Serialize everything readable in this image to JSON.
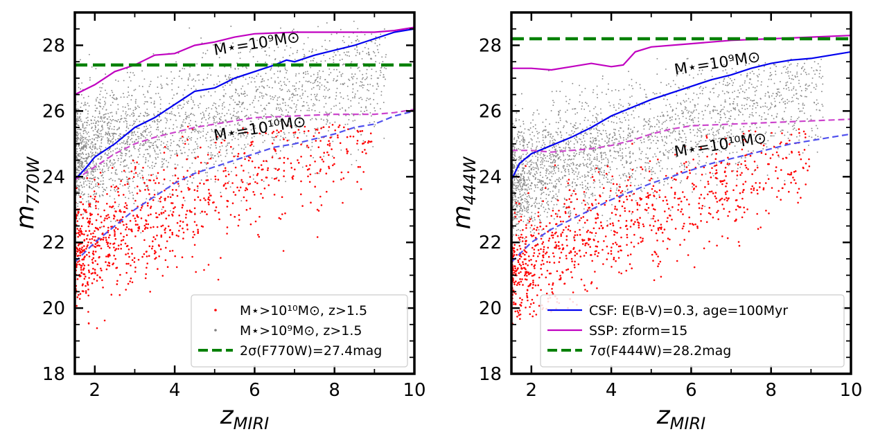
{
  "chart_data": [
    {
      "type": "scatter",
      "xlabel_main": "z",
      "xlabel_sub": "MIRI",
      "ylabel_main": "m",
      "ylabel_sub": "770W",
      "xlim": [
        1.5,
        10
      ],
      "ylim": [
        18,
        29
      ],
      "xticks": [
        "2",
        "4",
        "6",
        "8",
        "10"
      ],
      "yticks": [
        "18",
        "20",
        "22",
        "24",
        "26",
        "28"
      ],
      "threshold": 27.4,
      "annotations": [
        {
          "text": "M⋆=10⁹M⊙",
          "x": 5.0,
          "y": 27.7
        },
        {
          "text": "M⋆=10¹⁰M⊙",
          "x": 5.0,
          "y": 25.1
        }
      ],
      "legend": {
        "position": "lower right",
        "entries": [
          {
            "label": "M⋆>10¹⁰M⊙, z>1.5",
            "color": "#ff0000",
            "marker": "dot"
          },
          {
            "label": "M⋆>10⁹M⊙, z>1.5",
            "color": "#808080",
            "marker": "dot"
          },
          {
            "label": "2σ(F770W)=27.4mag",
            "color": "#008000",
            "marker": "dash"
          }
        ]
      },
      "series": [
        {
          "style": "solid",
          "color": "#0000ee",
          "x": [
            1.5,
            1.8,
            2.0,
            2.5,
            3.0,
            3.5,
            4.0,
            4.5,
            5.0,
            5.5,
            6.0,
            6.5,
            6.8,
            7.0,
            7.5,
            8.0,
            8.5,
            9.0,
            9.5,
            10.0
          ],
          "y": [
            23.9,
            24.3,
            24.6,
            25.0,
            25.5,
            25.8,
            26.2,
            26.6,
            26.7,
            27.0,
            27.2,
            27.4,
            27.55,
            27.5,
            27.7,
            27.85,
            28.0,
            28.2,
            28.4,
            28.5
          ]
        },
        {
          "style": "solid",
          "color": "#c000c0",
          "x": [
            1.5,
            2.0,
            2.5,
            3.0,
            3.5,
            4.0,
            4.5,
            5.0,
            5.5,
            6.0,
            7.0,
            8.0,
            9.0,
            9.5,
            10.0
          ],
          "y": [
            26.5,
            26.8,
            27.2,
            27.4,
            27.7,
            27.75,
            28.0,
            28.1,
            28.25,
            28.35,
            28.4,
            28.4,
            28.4,
            28.45,
            28.55
          ]
        },
        {
          "style": "dashed",
          "color": "#5050ee",
          "x": [
            1.5,
            2.0,
            2.5,
            3.0,
            3.5,
            4.0,
            4.5,
            5.0,
            5.5,
            6.0,
            6.5,
            7.0,
            7.5,
            8.0,
            8.5,
            9.0,
            9.5,
            10.0
          ],
          "y": [
            21.4,
            22.0,
            22.5,
            23.0,
            23.4,
            23.8,
            24.1,
            24.3,
            24.5,
            24.7,
            24.9,
            25.0,
            25.15,
            25.3,
            25.5,
            25.6,
            25.85,
            26.0
          ]
        },
        {
          "style": "dashed",
          "color": "#cc44cc",
          "x": [
            1.5,
            2.0,
            2.5,
            3.0,
            3.5,
            4.0,
            4.5,
            5.0,
            5.5,
            6.0,
            7.0,
            8.0,
            9.0,
            9.5,
            10.0
          ],
          "y": [
            23.9,
            24.3,
            24.7,
            25.0,
            25.2,
            25.35,
            25.5,
            25.6,
            25.7,
            25.8,
            25.85,
            25.9,
            25.9,
            25.95,
            26.05
          ]
        }
      ],
      "clouds": {
        "gray": {
          "count": 2600,
          "zmin": 1.5,
          "zmax": 9.3,
          "center": [
            24.6,
            0.33
          ],
          "spread": 0.95,
          "min": 22.0,
          "max": 28.8
        },
        "red": {
          "count": 1000,
          "zmin": 1.5,
          "zmax": 9.0,
          "center": [
            21.6,
            0.55
          ],
          "spread": 0.9,
          "min": 19.0,
          "max": 25.6
        }
      }
    },
    {
      "type": "scatter",
      "xlabel_main": "z",
      "xlabel_sub": "MIRI",
      "ylabel_main": "m",
      "ylabel_sub": "444W",
      "xlim": [
        1.5,
        10
      ],
      "ylim": [
        18,
        29
      ],
      "xticks": [
        "2",
        "4",
        "6",
        "8",
        "10"
      ],
      "yticks": [
        "18",
        "20",
        "22",
        "24",
        "26",
        "28"
      ],
      "threshold": 28.2,
      "annotations": [
        {
          "text": "M⋆=10⁹M⊙",
          "x": 5.6,
          "y": 27.1
        },
        {
          "text": "M⋆=10¹⁰M⊙",
          "x": 5.6,
          "y": 24.6
        }
      ],
      "legend": {
        "position": "lower right",
        "entries": [
          {
            "label": "CSF: E(B-V)=0.3, age=100Myr",
            "color": "#0000ee",
            "marker": "line"
          },
          {
            "label": "SSP: zform=15",
            "color": "#c000c0",
            "marker": "line"
          },
          {
            "label": "7σ(F444W)=28.2mag",
            "color": "#008000",
            "marker": "dash"
          }
        ]
      },
      "series": [
        {
          "style": "solid",
          "color": "#0000ee",
          "x": [
            1.5,
            1.7,
            2.0,
            2.5,
            3.0,
            3.5,
            4.0,
            4.5,
            5.0,
            5.5,
            6.0,
            6.5,
            7.0,
            7.5,
            8.0,
            8.5,
            9.0,
            9.5,
            10.0
          ],
          "y": [
            23.9,
            24.4,
            24.7,
            24.95,
            25.2,
            25.5,
            25.85,
            26.1,
            26.35,
            26.55,
            26.75,
            26.95,
            27.1,
            27.3,
            27.45,
            27.55,
            27.6,
            27.7,
            27.8
          ]
        },
        {
          "style": "solid",
          "color": "#c000c0",
          "x": [
            1.5,
            2.0,
            2.5,
            3.0,
            3.5,
            4.0,
            4.3,
            4.6,
            5.0,
            6.0,
            7.0,
            8.0,
            9.0,
            10.0
          ],
          "y": [
            27.3,
            27.3,
            27.25,
            27.35,
            27.45,
            27.35,
            27.4,
            27.8,
            27.95,
            28.05,
            28.15,
            28.2,
            28.25,
            28.3
          ]
        },
        {
          "style": "dashed",
          "color": "#5050ee",
          "x": [
            1.5,
            2.0,
            2.5,
            3.0,
            3.5,
            4.0,
            4.5,
            5.0,
            5.5,
            6.0,
            6.5,
            7.0,
            7.5,
            8.0,
            8.5,
            9.0,
            9.5,
            10.0
          ],
          "y": [
            21.4,
            22.0,
            22.4,
            22.7,
            23.0,
            23.3,
            23.55,
            23.8,
            24.0,
            24.2,
            24.4,
            24.55,
            24.7,
            24.85,
            25.0,
            25.1,
            25.2,
            25.3
          ]
        },
        {
          "style": "dashed",
          "color": "#cc44cc",
          "x": [
            1.5,
            2.0,
            2.5,
            3.0,
            3.5,
            4.0,
            4.5,
            5.0,
            5.5,
            6.0,
            7.0,
            8.0,
            9.0,
            10.0
          ],
          "y": [
            24.8,
            24.8,
            24.75,
            24.8,
            24.85,
            24.95,
            25.1,
            25.3,
            25.45,
            25.55,
            25.6,
            25.65,
            25.7,
            25.75
          ]
        }
      ],
      "clouds": {
        "gray": {
          "count": 2600,
          "zmin": 1.5,
          "zmax": 9.3,
          "center": [
            23.9,
            0.38
          ],
          "spread": 0.9,
          "min": 21.0,
          "max": 27.6
        },
        "red": {
          "count": 1000,
          "zmin": 1.5,
          "zmax": 9.0,
          "center": [
            21.1,
            0.5
          ],
          "spread": 0.85,
          "min": 19.5,
          "max": 25.5
        }
      }
    }
  ]
}
